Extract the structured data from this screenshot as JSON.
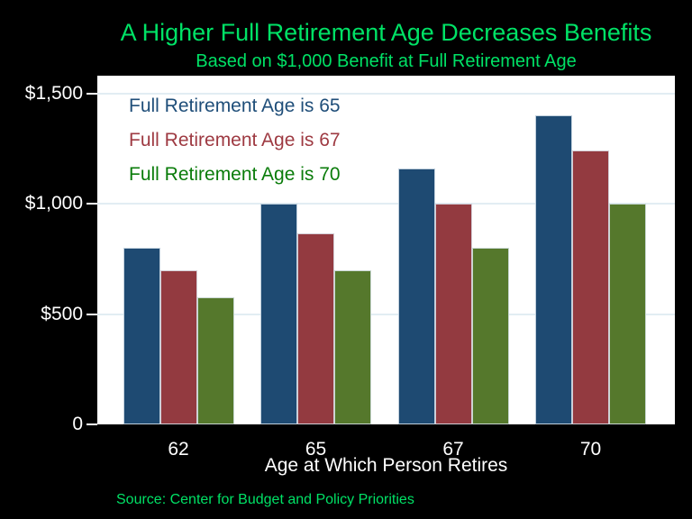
{
  "title": "A Higher Full Retirement Age Decreases Benefits",
  "subtitle": "Based on $1,000 Benefit at Full Retirement Age",
  "source": "Source: Center for Budget and Policy Priorities",
  "colors": {
    "background": "#000000",
    "heading_green": "#00e266",
    "plot_bg": "#ffffff",
    "gridline": "#e2edf3",
    "axis_text": "#ffffff",
    "legend_blue": "#1f4e79",
    "legend_red": "#9e3a42",
    "legend_green": "#0a7c0a"
  },
  "chart_data": {
    "type": "bar",
    "categories": [
      "62",
      "65",
      "67",
      "70"
    ],
    "series": [
      {
        "name": "Full Retirement Age is 65",
        "color": "#1e4a72",
        "values": [
          800,
          1000,
          1160,
          1400
        ]
      },
      {
        "name": "Full Retirement Age is 67",
        "color": "#933a40",
        "values": [
          700,
          867,
          1000,
          1240
        ]
      },
      {
        "name": "Full Retirement Age is 70",
        "color": "#55782c",
        "values": [
          575,
          700,
          800,
          1000
        ]
      }
    ],
    "legend": [
      {
        "label": "Full Retirement Age is 65",
        "color": "#1f4e79"
      },
      {
        "label": "Full Retirement Age is 67",
        "color": "#9e3a42"
      },
      {
        "label": "Full Retirement Age is 70",
        "color": "#0a7c0a"
      }
    ],
    "xlabel": "Age at Which Person Retires",
    "ylabel": "",
    "ylim": [
      0,
      1580
    ],
    "yticks": [
      {
        "value": 0,
        "label": "0"
      },
      {
        "value": 500,
        "label": "$500"
      },
      {
        "value": 1000,
        "label": "$1,000"
      },
      {
        "value": 1500,
        "label": "$1,500"
      }
    ],
    "grid": true,
    "legend_position": "top-left-inside"
  }
}
